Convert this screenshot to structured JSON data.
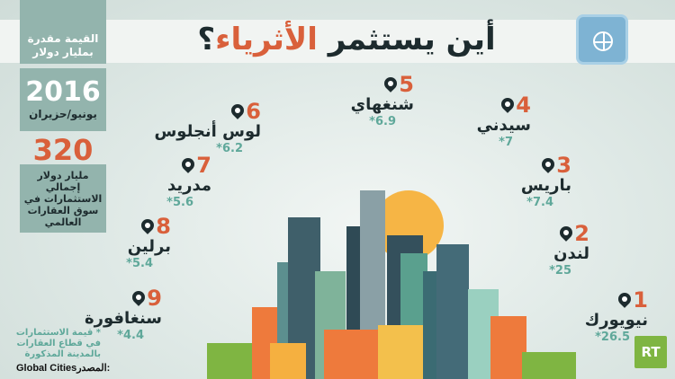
{
  "title": {
    "part1": "أين يستثمر ",
    "highlight": "الأثرياء",
    "part2": "؟"
  },
  "sidebar": {
    "unit_label": "القيمة مقدرة بمليار دولار",
    "year": "2016",
    "month": "يونيو/حزيران",
    "total": "320",
    "total_label": "مليار دولار إجمالي الاستثمارات في سوق العقارات العالمي"
  },
  "footnote": "* قيمة الاستثمارات في قطاع العقارات بالمدينة المذكورة",
  "source": {
    "label": "المصدر:",
    "value": "Global Cities"
  },
  "logo": "RT",
  "colors": {
    "accent": "#d9603b",
    "value": "#5fa89a",
    "panel": "#93b4ad",
    "dark": "#1d2b2e"
  },
  "cities": [
    {
      "rank": "1",
      "name": "نيويورك",
      "value": "26.5*"
    },
    {
      "rank": "2",
      "name": "لندن",
      "value": "25*"
    },
    {
      "rank": "3",
      "name": "باريس",
      "value": "7.4*"
    },
    {
      "rank": "4",
      "name": "سيدني",
      "value": "7*"
    },
    {
      "rank": "5",
      "name": "شنغهاي",
      "value": "6.9*"
    },
    {
      "rank": "6",
      "name": "لوس أنجلوس",
      "value": "6.2*"
    },
    {
      "rank": "7",
      "name": "مدريد",
      "value": "5.6*"
    },
    {
      "rank": "8",
      "name": "برلين",
      "value": "5.4*"
    },
    {
      "rank": "9",
      "name": "سنغافورة",
      "value": "4.4*"
    }
  ]
}
